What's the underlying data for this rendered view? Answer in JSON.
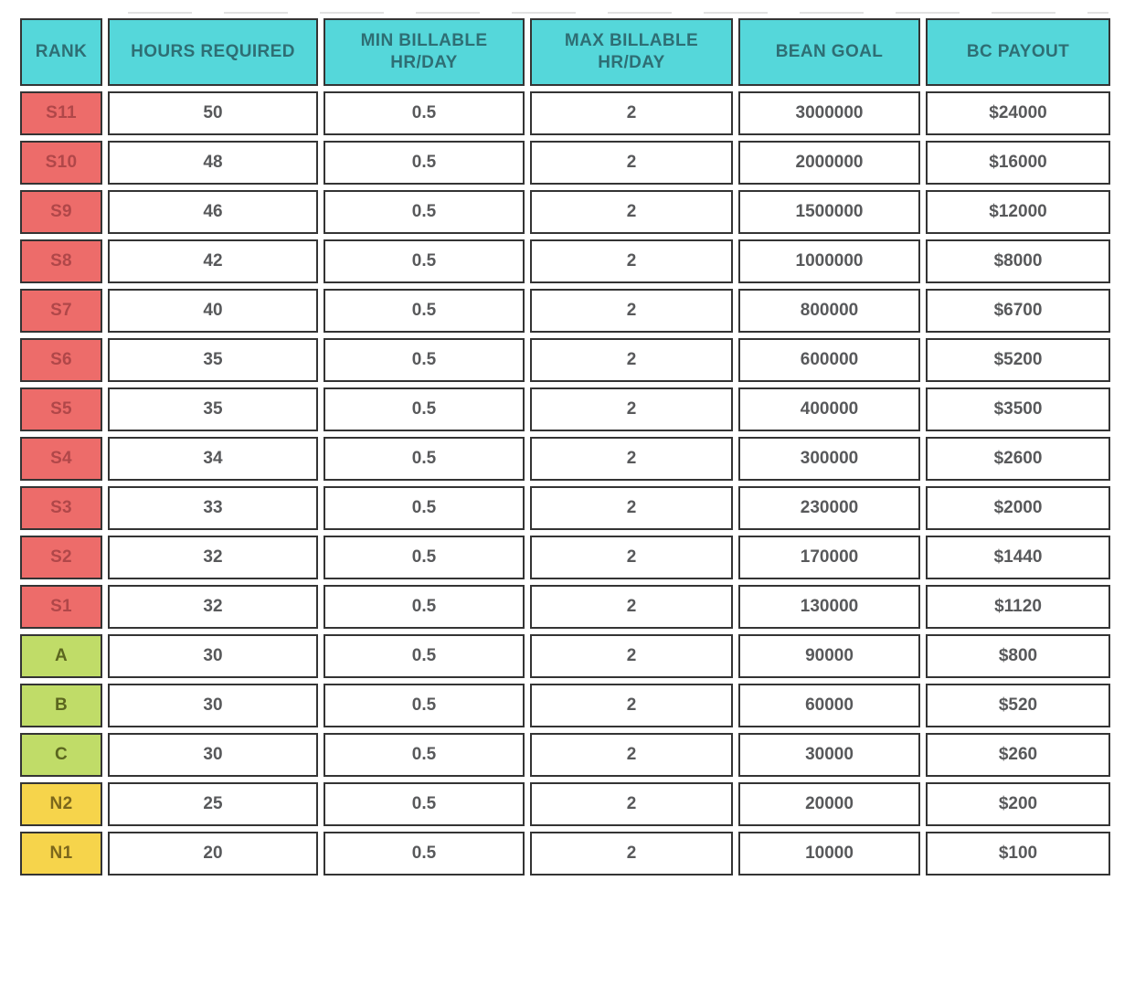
{
  "colors": {
    "header_bg": "#55d7da",
    "header_text": "#2e6e74",
    "border": "#343434",
    "rank_s_bg": "#ed6c6a",
    "rank_s_text": "#b04749",
    "rank_abc_bg": "#c0dc68",
    "rank_abc_text": "#5b661f",
    "rank_n_bg": "#f6d44b",
    "rank_n_text": "#7c671c",
    "cell_text": "#58595b",
    "page_bg": "#ffffff"
  },
  "table": {
    "columns": [
      {
        "id": "rank",
        "label": "RANK"
      },
      {
        "id": "hours_required",
        "label": "HOURS REQUIRED"
      },
      {
        "id": "min_billable_hr_day",
        "label": "MIN BILLABLE\nHR/DAY"
      },
      {
        "id": "max_billable_hr_day",
        "label": "MAX BILLABLE\nHR/DAY"
      },
      {
        "id": "bean_goal",
        "label": "BEAN GOAL"
      },
      {
        "id": "bc_payout",
        "label": "BC PAYOUT"
      }
    ],
    "rows": [
      {
        "rank": "S11",
        "tier": "s",
        "hours_required": "50",
        "min_billable": "0.5",
        "max_billable": "2",
        "bean_goal": "3000000",
        "bc_payout": "$24000"
      },
      {
        "rank": "S10",
        "tier": "s",
        "hours_required": "48",
        "min_billable": "0.5",
        "max_billable": "2",
        "bean_goal": "2000000",
        "bc_payout": "$16000"
      },
      {
        "rank": "S9",
        "tier": "s",
        "hours_required": "46",
        "min_billable": "0.5",
        "max_billable": "2",
        "bean_goal": "1500000",
        "bc_payout": "$12000"
      },
      {
        "rank": "S8",
        "tier": "s",
        "hours_required": "42",
        "min_billable": "0.5",
        "max_billable": "2",
        "bean_goal": "1000000",
        "bc_payout": "$8000"
      },
      {
        "rank": "S7",
        "tier": "s",
        "hours_required": "40",
        "min_billable": "0.5",
        "max_billable": "2",
        "bean_goal": "800000",
        "bc_payout": "$6700"
      },
      {
        "rank": "S6",
        "tier": "s",
        "hours_required": "35",
        "min_billable": "0.5",
        "max_billable": "2",
        "bean_goal": "600000",
        "bc_payout": "$5200"
      },
      {
        "rank": "S5",
        "tier": "s",
        "hours_required": "35",
        "min_billable": "0.5",
        "max_billable": "2",
        "bean_goal": "400000",
        "bc_payout": "$3500"
      },
      {
        "rank": "S4",
        "tier": "s",
        "hours_required": "34",
        "min_billable": "0.5",
        "max_billable": "2",
        "bean_goal": "300000",
        "bc_payout": "$2600"
      },
      {
        "rank": "S3",
        "tier": "s",
        "hours_required": "33",
        "min_billable": "0.5",
        "max_billable": "2",
        "bean_goal": "230000",
        "bc_payout": "$2000"
      },
      {
        "rank": "S2",
        "tier": "s",
        "hours_required": "32",
        "min_billable": "0.5",
        "max_billable": "2",
        "bean_goal": "170000",
        "bc_payout": "$1440"
      },
      {
        "rank": "S1",
        "tier": "s",
        "hours_required": "32",
        "min_billable": "0.5",
        "max_billable": "2",
        "bean_goal": "130000",
        "bc_payout": "$1120"
      },
      {
        "rank": "A",
        "tier": "abc",
        "hours_required": "30",
        "min_billable": "0.5",
        "max_billable": "2",
        "bean_goal": "90000",
        "bc_payout": "$800"
      },
      {
        "rank": "B",
        "tier": "abc",
        "hours_required": "30",
        "min_billable": "0.5",
        "max_billable": "2",
        "bean_goal": "60000",
        "bc_payout": "$520"
      },
      {
        "rank": "C",
        "tier": "abc",
        "hours_required": "30",
        "min_billable": "0.5",
        "max_billable": "2",
        "bean_goal": "30000",
        "bc_payout": "$260"
      },
      {
        "rank": "N2",
        "tier": "n",
        "hours_required": "25",
        "min_billable": "0.5",
        "max_billable": "2",
        "bean_goal": "20000",
        "bc_payout": "$200"
      },
      {
        "rank": "N1",
        "tier": "n",
        "hours_required": "20",
        "min_billable": "0.5",
        "max_billable": "2",
        "bean_goal": "10000",
        "bc_payout": "$100"
      }
    ]
  }
}
